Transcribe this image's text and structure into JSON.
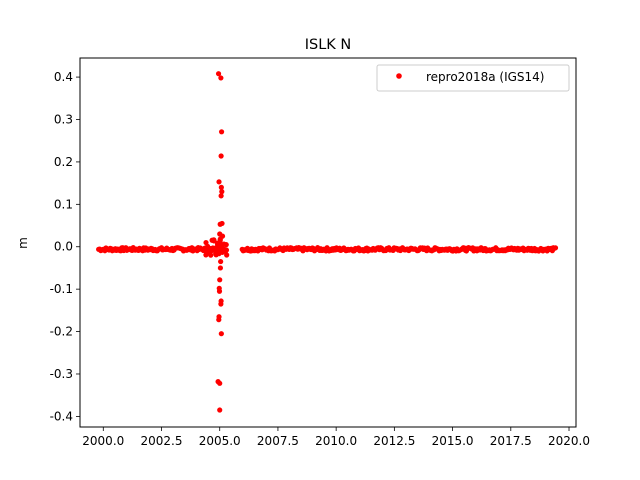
{
  "chart_data": {
    "type": "scatter",
    "title": "ISLK N",
    "xlabel": "",
    "ylabel": "m",
    "xlim": [
      1999.0,
      2020.3
    ],
    "ylim": [
      -0.425,
      0.445
    ],
    "xticks": [
      "2000.0",
      "2002.5",
      "2005.0",
      "2007.5",
      "2010.0",
      "2012.5",
      "2015.0",
      "2017.5",
      "2020.0"
    ],
    "yticks": [
      "0.4",
      "0.3",
      "0.2",
      "0.1",
      "0.0",
      "-0.1",
      "-0.2",
      "-0.3",
      "-0.4"
    ],
    "grid": false,
    "legend": {
      "placement": "top-right"
    },
    "series": [
      {
        "name": "repro2018a (IGS14)",
        "color": "#ff0000",
        "marker": "circle",
        "points": [
          [
            2004.95,
            0.408
          ],
          [
            2005.05,
            0.398
          ],
          [
            2005.08,
            0.271
          ],
          [
            2005.06,
            0.214
          ],
          [
            2004.97,
            0.153
          ],
          [
            2005.07,
            0.14
          ],
          [
            2005.09,
            0.13
          ],
          [
            2005.06,
            0.12
          ],
          [
            2005.02,
            0.053
          ],
          [
            2005.1,
            0.055
          ],
          [
            2005.0,
            0.03
          ],
          [
            2005.12,
            0.025
          ],
          [
            2005.04,
            -0.035
          ],
          [
            2005.03,
            -0.05
          ],
          [
            2005.0,
            -0.078
          ],
          [
            2004.98,
            -0.098
          ],
          [
            2004.99,
            -0.105
          ],
          [
            2005.06,
            -0.128
          ],
          [
            2005.05,
            -0.135
          ],
          [
            2004.97,
            -0.165
          ],
          [
            2004.96,
            -0.172
          ],
          [
            2005.07,
            -0.205
          ],
          [
            2004.93,
            -0.318
          ],
          [
            2005.0,
            -0.322
          ],
          [
            2005.0,
            -0.385
          ]
        ],
        "band": {
          "x_start": 1999.8,
          "x_end": 2019.45,
          "gap": [
            2005.3,
            2005.95
          ],
          "baseline": -0.006,
          "spread": 0.004
        }
      }
    ]
  }
}
